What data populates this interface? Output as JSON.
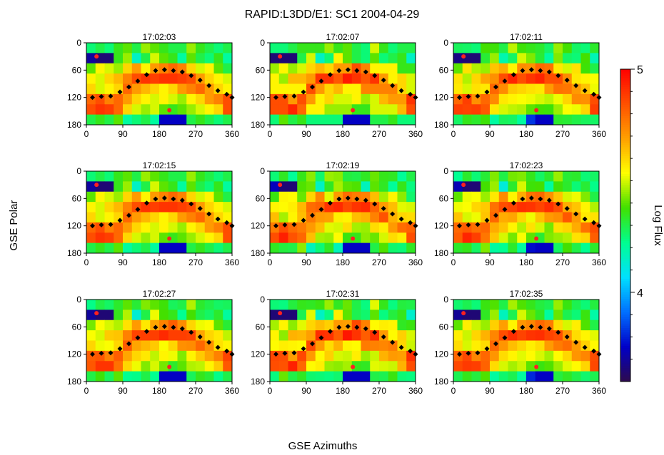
{
  "chart_data": {
    "type": "heatmap",
    "title": "RAPID:L3DD/E1: SC1 2004-04-29",
    "xlabel": "GSE Azimuths",
    "ylabel": "GSE Polar",
    "xlim": [
      0,
      360
    ],
    "ylim": [
      0,
      180
    ],
    "y_inverted": true,
    "xticks": [
      "0",
      "90",
      "180",
      "270",
      "360"
    ],
    "yticks": [
      "0",
      "60",
      "120",
      "180"
    ],
    "grid": false,
    "colorbar": {
      "label": "Log Flux",
      "range": [
        3.6,
        5.0
      ],
      "major_ticks": [
        "4",
        "5"
      ],
      "major_values": [
        4,
        5
      ],
      "minor_values": [
        3.7,
        3.8,
        3.9,
        4.1,
        4.2,
        4.3,
        4.4,
        4.5,
        4.6,
        4.7,
        4.8,
        4.9
      ],
      "colormap": [
        "#2d0a4e",
        "#0000c8",
        "#0070ff",
        "#00e0ff",
        "#00ff90",
        "#40e000",
        "#ffff00",
        "#ffa000",
        "#ff5000",
        "#ff0000"
      ]
    },
    "panels": [
      {
        "time": "17:02:03"
      },
      {
        "time": "17:02:07"
      },
      {
        "time": "17:02:11"
      },
      {
        "time": "17:02:15"
      },
      {
        "time": "17:02:19"
      },
      {
        "time": "17:02:23"
      },
      {
        "time": "17:02:27"
      },
      {
        "time": "17:02:31"
      },
      {
        "time": "17:02:35"
      }
    ],
    "sector_polar_edges": [
      0,
      22.5,
      45,
      67.5,
      90,
      112.5,
      135,
      157.5,
      180
    ],
    "sector_azimuth_count": 16,
    "flux_pattern": [
      [
        4.25,
        4.3,
        4.25,
        4.35,
        4.4,
        4.3,
        4.45,
        4.4,
        4.35,
        4.3,
        4.3,
        4.45,
        4.35,
        4.3,
        4.25,
        4.3
      ],
      [
        3.7,
        4.2,
        4.1,
        4.35,
        4.45,
        4.15,
        4.3,
        4.5,
        4.4,
        4.35,
        4.2,
        4.4,
        4.3,
        4.25,
        4.35,
        4.2
      ],
      [
        4.4,
        4.55,
        4.5,
        4.45,
        4.6,
        4.7,
        4.55,
        4.7,
        4.75,
        4.8,
        4.75,
        4.6,
        4.5,
        4.55,
        4.4,
        4.3
      ],
      [
        4.55,
        4.5,
        4.6,
        4.65,
        4.75,
        4.85,
        4.9,
        4.88,
        4.9,
        4.9,
        4.88,
        4.85,
        4.7,
        4.6,
        4.55,
        4.5
      ],
      [
        4.6,
        4.5,
        4.55,
        4.6,
        4.8,
        4.7,
        4.65,
        4.6,
        4.55,
        4.6,
        4.7,
        4.75,
        4.8,
        4.7,
        4.6,
        4.55
      ],
      [
        4.8,
        4.85,
        4.75,
        4.8,
        4.7,
        4.6,
        4.55,
        4.5,
        4.55,
        4.5,
        4.45,
        4.55,
        4.6,
        4.7,
        4.75,
        4.85
      ],
      [
        4.85,
        4.9,
        4.88,
        4.8,
        4.6,
        4.5,
        4.45,
        4.5,
        4.4,
        4.35,
        4.4,
        4.45,
        4.5,
        4.55,
        4.6,
        4.85
      ],
      [
        4.3,
        4.35,
        4.3,
        4.4,
        4.2,
        4.25,
        4.3,
        4.2,
        3.8,
        4.15,
        4.25,
        4.3,
        4.35,
        4.3,
        4.25,
        4.3
      ]
    ],
    "panel_adjust": [
      0,
      -0.05,
      0.03,
      0,
      0.04,
      -0.03,
      0.02,
      -0.06,
      0.01
    ],
    "panel_variants": [
      {
        "blue_box_polar_row": 1,
        "blue_box_az": [
          1,
          2
        ],
        "low_box_polar_row": 7,
        "low_box_az": [
          8,
          10
        ]
      },
      {
        "blue_box_polar_row": 1,
        "blue_box_az": [
          0,
          2
        ],
        "low_box_polar_row": 7,
        "low_box_az": [
          8,
          10
        ]
      },
      {
        "blue_box_polar_row": 1,
        "blue_box_az": [
          1,
          2
        ],
        "low_box_polar_row": 7,
        "low_box_az": [
          9,
          10
        ]
      },
      {
        "blue_box_polar_row": 1,
        "blue_box_az": [
          1,
          2
        ],
        "low_box_polar_row": 7,
        "low_box_az": [
          8,
          10
        ]
      },
      {
        "blue_box_polar_row": 1,
        "blue_box_az": [
          1,
          2
        ],
        "low_box_polar_row": 7,
        "low_box_az": [
          8,
          10
        ]
      },
      {
        "blue_box_polar_row": 1,
        "blue_box_az": [
          1,
          2
        ],
        "low_box_polar_row": 7,
        "low_box_az": [
          9,
          10
        ]
      },
      {
        "blue_box_polar_row": 1,
        "blue_box_az": [
          1,
          2
        ],
        "low_box_polar_row": 7,
        "low_box_az": [
          8,
          10
        ]
      },
      {
        "blue_box_polar_row": 1,
        "blue_box_az": [
          0,
          2
        ],
        "low_box_polar_row": 7,
        "low_box_az": [
          8,
          10
        ]
      },
      {
        "blue_box_polar_row": 1,
        "blue_box_az": [
          1,
          2
        ],
        "low_box_polar_row": 7,
        "low_box_az": [
          9,
          10
        ]
      }
    ],
    "markers": {
      "diamond_series": [
        [
          15,
          120
        ],
        [
          37,
          118
        ],
        [
          60,
          117
        ],
        [
          83,
          108
        ],
        [
          105,
          97
        ],
        [
          127,
          84
        ],
        [
          149,
          70
        ],
        [
          171,
          61
        ],
        [
          193,
          59
        ],
        [
          215,
          61
        ],
        [
          237,
          64
        ],
        [
          259,
          72
        ],
        [
          281,
          82
        ],
        [
          303,
          94
        ],
        [
          325,
          105
        ],
        [
          347,
          113
        ],
        [
          360,
          120
        ]
      ],
      "red_points": [
        [
          25,
          30
        ],
        [
          205,
          148
        ]
      ]
    }
  }
}
